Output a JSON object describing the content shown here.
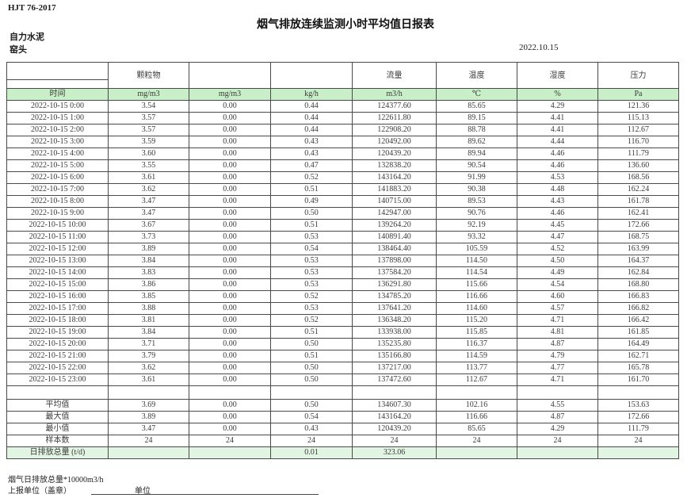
{
  "header": {
    "standard": "HJT  76-2017",
    "title": "烟气排放连续监测小时平均值日报表",
    "company": "自力水泥",
    "station": "窑头",
    "date": "2022.10.15"
  },
  "table": {
    "group_headers": [
      "",
      "颗粒物",
      "",
      "",
      "流量",
      "温度",
      "湿度",
      "压力"
    ],
    "unit_row": [
      "时间",
      "mg/m3",
      "mg/m3",
      "kg/h",
      "m3/h",
      "℃",
      "%",
      "Pa"
    ],
    "rows": [
      [
        "2022-10-15 0:00",
        "3.54",
        "0.00",
        "0.44",
        "124377.60",
        "85.65",
        "4.29",
        "121.36"
      ],
      [
        "2022-10-15 1:00",
        "3.57",
        "0.00",
        "0.44",
        "122611.80",
        "89.15",
        "4.41",
        "115.13"
      ],
      [
        "2022-10-15 2:00",
        "3.57",
        "0.00",
        "0.44",
        "122908.20",
        "88.78",
        "4.41",
        "112.67"
      ],
      [
        "2022-10-15 3:00",
        "3.59",
        "0.00",
        "0.43",
        "120492.00",
        "89.62",
        "4.44",
        "116.70"
      ],
      [
        "2022-10-15 4:00",
        "3.60",
        "0.00",
        "0.43",
        "120439.20",
        "89.94",
        "4.46",
        "111.79"
      ],
      [
        "2022-10-15 5:00",
        "3.55",
        "0.00",
        "0.47",
        "132838.20",
        "90.54",
        "4.46",
        "136.60"
      ],
      [
        "2022-10-15 6:00",
        "3.61",
        "0.00",
        "0.52",
        "143164.20",
        "91.99",
        "4.53",
        "168.56"
      ],
      [
        "2022-10-15 7:00",
        "3.62",
        "0.00",
        "0.51",
        "141883.20",
        "90.38",
        "4.48",
        "162.24"
      ],
      [
        "2022-10-15 8:00",
        "3.47",
        "0.00",
        "0.49",
        "140715.00",
        "89.53",
        "4.43",
        "161.78"
      ],
      [
        "2022-10-15 9:00",
        "3.47",
        "0.00",
        "0.50",
        "142947.00",
        "90.76",
        "4.46",
        "162.41"
      ],
      [
        "2022-10-15 10:00",
        "3.67",
        "0.00",
        "0.51",
        "139264.20",
        "92.19",
        "4.45",
        "172.66"
      ],
      [
        "2022-10-15 11:00",
        "3.73",
        "0.00",
        "0.53",
        "140891.40",
        "93.32",
        "4.47",
        "168.75"
      ],
      [
        "2022-10-15 12:00",
        "3.89",
        "0.00",
        "0.54",
        "138464.40",
        "105.59",
        "4.52",
        "163.99"
      ],
      [
        "2022-10-15 13:00",
        "3.84",
        "0.00",
        "0.53",
        "137898.00",
        "114.50",
        "4.50",
        "164.37"
      ],
      [
        "2022-10-15 14:00",
        "3.83",
        "0.00",
        "0.53",
        "137584.20",
        "114.54",
        "4.49",
        "162.84"
      ],
      [
        "2022-10-15 15:00",
        "3.86",
        "0.00",
        "0.53",
        "136291.80",
        "115.66",
        "4.54",
        "168.80"
      ],
      [
        "2022-10-15 16:00",
        "3.85",
        "0.00",
        "0.52",
        "134785.20",
        "116.66",
        "4.60",
        "166.83"
      ],
      [
        "2022-10-15 17:00",
        "3.88",
        "0.00",
        "0.53",
        "137641.20",
        "114.60",
        "4.57",
        "166.82"
      ],
      [
        "2022-10-15 18:00",
        "3.81",
        "0.00",
        "0.52",
        "136348.20",
        "115.20",
        "4.71",
        "166.42"
      ],
      [
        "2022-10-15 19:00",
        "3.84",
        "0.00",
        "0.51",
        "133938.00",
        "115.85",
        "4.81",
        "161.85"
      ],
      [
        "2022-10-15 20:00",
        "3.71",
        "0.00",
        "0.50",
        "135235.80",
        "116.37",
        "4.87",
        "164.49"
      ],
      [
        "2022-10-15 21:00",
        "3.79",
        "0.00",
        "0.51",
        "135166.80",
        "114.59",
        "4.79",
        "162.71"
      ],
      [
        "2022-10-15 22:00",
        "3.62",
        "0.00",
        "0.50",
        "137217.00",
        "113.77",
        "4.77",
        "165.78"
      ],
      [
        "2022-10-15 23:00",
        "3.61",
        "0.00",
        "0.50",
        "137472.60",
        "112.67",
        "4.71",
        "161.70"
      ]
    ],
    "summary": [
      {
        "label": "平均值",
        "values": [
          "3.69",
          "0.00",
          "0.50",
          "134607.30",
          "102.16",
          "4.55",
          "153.63"
        ]
      },
      {
        "label": "最大值",
        "values": [
          "3.89",
          "0.00",
          "0.54",
          "143164.20",
          "116.66",
          "4.87",
          "172.66"
        ]
      },
      {
        "label": "最小值",
        "values": [
          "3.47",
          "0.00",
          "0.43",
          "120439.20",
          "85.65",
          "4.29",
          "111.79"
        ]
      },
      {
        "label": "样本数",
        "values": [
          "24",
          "24",
          "24",
          "24",
          "24",
          "24",
          "24"
        ]
      },
      {
        "label": "日排放总量 (t/d)",
        "values": [
          "",
          "",
          "0.01",
          "323.06",
          "",
          "",
          ""
        ]
      }
    ]
  },
  "footer": {
    "note": "烟气日排放总量*10000m3/h",
    "report_unit_label": "上报单位（盖章）",
    "unit_label": "单位"
  },
  "colors": {
    "unit_row_green": "#c9efc9",
    "total_row_green": "#e2f5e2"
  }
}
